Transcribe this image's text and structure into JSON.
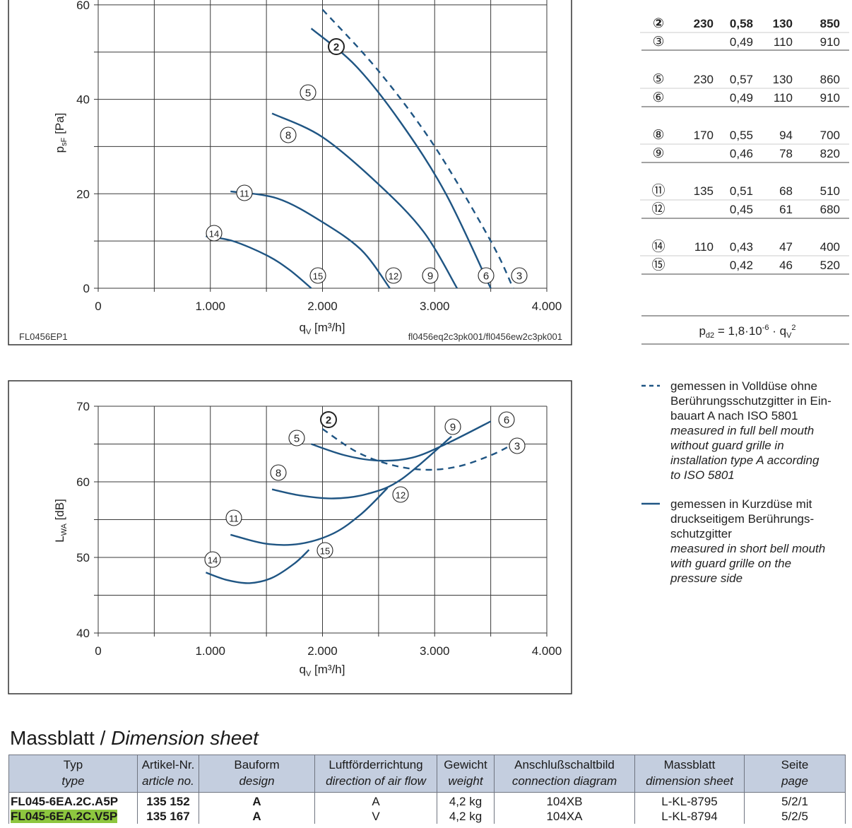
{
  "chart_data": [
    {
      "type": "line",
      "title": "",
      "xlabel": "qV [m³/h]",
      "ylabel": "psF [Pa]",
      "xlim": [
        0,
        4000
      ],
      "ylim": [
        0,
        70
      ],
      "xticks": [
        0,
        1000,
        2000,
        3000,
        4000
      ],
      "xtick_labels": [
        "0",
        "1.000",
        "2.000",
        "3.000",
        "4.000"
      ],
      "yticks": [
        0,
        20,
        40,
        60
      ],
      "grid": true,
      "figure_code": "FL0456EP1",
      "file_ref": "fl0456eq2c3pk001/fl0456ew2c3pk001",
      "series": [
        {
          "name": "2",
          "style": "dashed",
          "x": [
            2000,
            2500,
            3000,
            3500,
            3700
          ],
          "y": [
            59,
            46,
            30,
            10,
            0
          ]
        },
        {
          "name": "5",
          "style": "solid",
          "x": [
            1900,
            2300,
            2700,
            3100,
            3500
          ],
          "y": [
            55,
            47,
            35,
            20,
            0
          ]
        },
        {
          "name": "8",
          "style": "solid",
          "x": [
            1550,
            2000,
            2500,
            2900,
            3200
          ],
          "y": [
            37,
            32,
            22,
            12,
            0
          ]
        },
        {
          "name": "11",
          "style": "solid",
          "x": [
            1180,
            1600,
            2000,
            2350,
            2600
          ],
          "y": [
            20.5,
            19,
            14,
            8,
            0
          ]
        },
        {
          "name": "14",
          "style": "solid",
          "x": [
            960,
            1200,
            1500,
            1700,
            1900
          ],
          "y": [
            11,
            10,
            7,
            4,
            0
          ]
        }
      ],
      "curve_markers": [
        "2",
        "5",
        "8",
        "11",
        "14",
        "15",
        "12",
        "9",
        "6",
        "3"
      ]
    },
    {
      "type": "line",
      "title": "",
      "xlabel": "qV [m³/h]",
      "ylabel": "LWA [dB]",
      "xlim": [
        0,
        4000
      ],
      "ylim": [
        40,
        70
      ],
      "xticks": [
        0,
        1000,
        2000,
        3000,
        4000
      ],
      "xtick_labels": [
        "0",
        "1.000",
        "2.000",
        "3.000",
        "4.000"
      ],
      "yticks": [
        40,
        50,
        60,
        70
      ],
      "grid": true,
      "series": [
        {
          "name": "2-3",
          "style": "dashed",
          "x": [
            2000,
            2300,
            2600,
            2900,
            3200,
            3500,
            3700
          ],
          "y": [
            67,
            64,
            62.3,
            61.6,
            62,
            63.5,
            65
          ]
        },
        {
          "name": "5-6",
          "style": "solid",
          "x": [
            1900,
            2200,
            2500,
            2800,
            3100,
            3500
          ],
          "y": [
            65,
            63.5,
            62.8,
            63.2,
            65,
            68
          ]
        },
        {
          "name": "8-9",
          "style": "solid",
          "x": [
            1550,
            1800,
            2100,
            2400,
            2700,
            3150
          ],
          "y": [
            59,
            58.2,
            57.8,
            58.4,
            60.3,
            66
          ]
        },
        {
          "name": "11-12",
          "style": "solid",
          "x": [
            1180,
            1500,
            1800,
            2100,
            2350,
            2580
          ],
          "y": [
            53,
            51.8,
            51.8,
            53.2,
            55.8,
            59.2
          ]
        },
        {
          "name": "14-15",
          "style": "solid",
          "x": [
            960,
            1150,
            1350,
            1550,
            1750,
            1880
          ],
          "y": [
            48,
            47,
            46.6,
            47.3,
            49.2,
            51
          ]
        }
      ],
      "curve_markers": [
        "2",
        "5",
        "8",
        "11",
        "14",
        "9",
        "6",
        "3",
        "12",
        "15"
      ]
    }
  ],
  "table": {
    "rows": [
      {
        "curve": "2",
        "voltage": "230",
        "current": "0,58",
        "power": "130",
        "speed": "850",
        "bold": true
      },
      {
        "curve": "3",
        "voltage": "",
        "current": "0,49",
        "power": "110",
        "speed": "910",
        "bold": false
      },
      {
        "curve": "5",
        "voltage": "230",
        "current": "0,57",
        "power": "130",
        "speed": "860",
        "bold": false
      },
      {
        "curve": "6",
        "voltage": "",
        "current": "0,49",
        "power": "110",
        "speed": "910",
        "bold": false
      },
      {
        "curve": "8",
        "voltage": "170",
        "current": "0,55",
        "power": "94",
        "speed": "700",
        "bold": false
      },
      {
        "curve": "9",
        "voltage": "",
        "current": "0,46",
        "power": "78",
        "speed": "820",
        "bold": false
      },
      {
        "curve": "11",
        "voltage": "135",
        "current": "0,51",
        "power": "68",
        "speed": "510",
        "bold": false
      },
      {
        "curve": "12",
        "voltage": "",
        "current": "0,45",
        "power": "61",
        "speed": "680",
        "bold": false
      },
      {
        "curve": "14",
        "voltage": "110",
        "current": "0,43",
        "power": "47",
        "speed": "400",
        "bold": false
      },
      {
        "curve": "15",
        "voltage": "",
        "current": "0,42",
        "power": "46",
        "speed": "520",
        "bold": false
      }
    ],
    "formula": "pd2 = 1,8·10-6 · qV2"
  },
  "legend": {
    "dashed": [
      "gemessen in Volldüse ohne",
      "Berührungsschutzgitter in Ein-",
      "bauart A nach ISO 5801",
      "measured in full bell mouth",
      "without guard grille in",
      "installation type A according",
      "to ISO 5801"
    ],
    "solid": [
      "gemessen in Kurzdüse mit",
      "druckseitigem Berührungs-",
      "schutzgitter",
      "measured in short bell mouth",
      "with guard grille on the",
      "pressure side"
    ]
  },
  "dimension": {
    "title_de": "Massblatt / ",
    "title_en": "Dimension sheet",
    "headers": [
      {
        "de": "Typ",
        "en": "type"
      },
      {
        "de": "Artikel-Nr.",
        "en": "article no."
      },
      {
        "de": "Bauform",
        "en": "design"
      },
      {
        "de": "Luftförderrichtung",
        "en": "direction of air flow"
      },
      {
        "de": "Gewicht",
        "en": "weight"
      },
      {
        "de": "Anschlußschaltbild",
        "en": "connection diagram"
      },
      {
        "de": "Massblatt",
        "en": "dimension sheet"
      },
      {
        "de": "Seite",
        "en": "page"
      }
    ],
    "rows": [
      [
        "FL045-6EA.2C.A5P",
        "135 152",
        "A",
        "A",
        "4,2 kg",
        "104XB",
        "L-KL-8795",
        "5/2/1"
      ],
      [
        "FL045-6EA.2C.V5P",
        "135 167",
        "A",
        "V",
        "4,2 kg",
        "104XA",
        "L-KL-8794",
        "5/2/5"
      ]
    ],
    "highlight_color": "#8dc63f"
  },
  "colors": {
    "curve": "#1f5583",
    "frame": "#333333",
    "grid": "#3a3a3a",
    "header_bg": "#c4cedf"
  }
}
